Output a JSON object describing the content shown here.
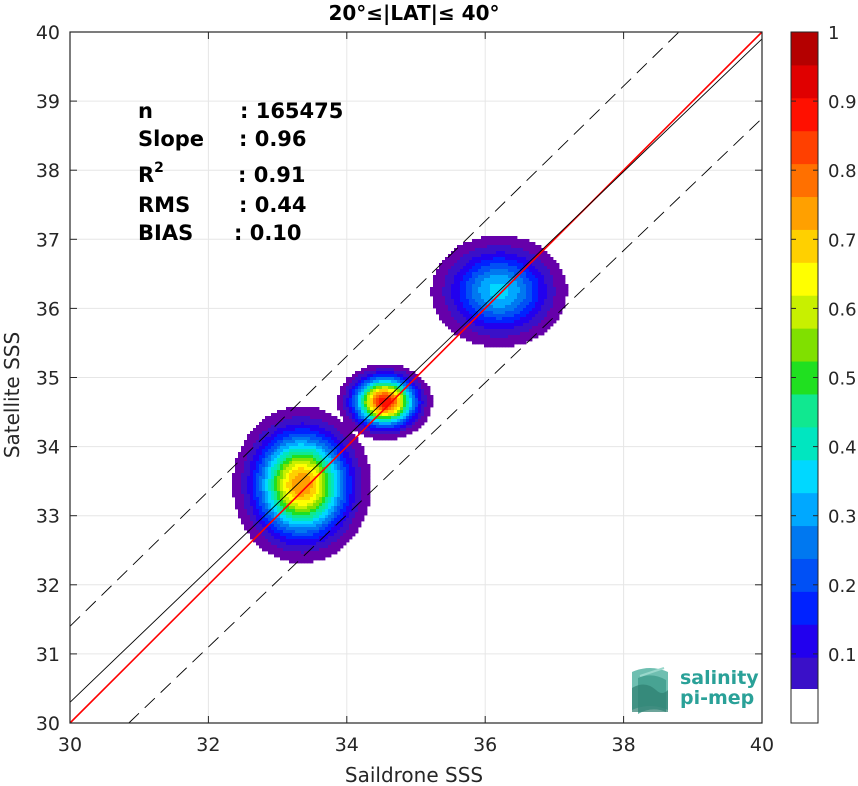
{
  "chart_data": {
    "type": "contour",
    "title": "20°≤|LAT|≤ 40°",
    "xlabel": "Saildrone SSS",
    "ylabel": "Satellite SSS",
    "xlim": [
      30,
      40
    ],
    "ylim": [
      30,
      40
    ],
    "xticks": [
      30,
      32,
      34,
      36,
      38,
      40
    ],
    "yticks": [
      30,
      31,
      32,
      33,
      34,
      35,
      36,
      37,
      38,
      39,
      40
    ],
    "grid": true,
    "stats": [
      {
        "label": "n",
        "value": ": 165475"
      },
      {
        "label": "Slope",
        "value": ": 0.96"
      },
      {
        "label": "R",
        "sup": "2",
        "value": ": 0.91"
      },
      {
        "label": "RMS",
        "value": ": 0.44"
      },
      {
        "label": "BIAS",
        "value": ": 0.10"
      }
    ],
    "lines": [
      {
        "name": "identity",
        "color": "#ff0000",
        "points": [
          [
            30,
            30
          ],
          [
            40,
            40
          ]
        ]
      },
      {
        "name": "regression",
        "color": "#000000",
        "points": [
          [
            30,
            30.3
          ],
          [
            40,
            39.9
          ]
        ]
      },
      {
        "name": "upper-bound",
        "color": "#000000",
        "dashed": true,
        "points": [
          [
            30,
            31.4
          ],
          [
            38.8,
            40
          ]
        ]
      },
      {
        "name": "lower-bound",
        "color": "#000000",
        "dashed": true,
        "points": [
          [
            30.85,
            30
          ],
          [
            40,
            38.75
          ]
        ]
      }
    ],
    "density_clusters": [
      {
        "center": [
          33.35,
          33.45
        ],
        "spread": [
          0.75,
          0.85
        ],
        "peak": 0.85
      },
      {
        "center": [
          34.55,
          34.65
        ],
        "spread": [
          0.5,
          0.4
        ],
        "peak": 1.0
      },
      {
        "center": [
          36.2,
          36.25
        ],
        "spread": [
          0.85,
          0.7
        ],
        "peak": 0.42
      }
    ],
    "colorbar": {
      "range": [
        0,
        1
      ],
      "ticks": [
        0.1,
        0.2,
        0.3,
        0.4,
        0.5,
        0.6,
        0.7,
        0.8,
        0.9,
        1
      ],
      "tick_labels": [
        "0.1",
        "0.2",
        "0.3",
        "0.4",
        "0.5",
        "0.6",
        "0.7",
        "0.8",
        "0.9",
        "1"
      ],
      "levels": 20,
      "colors": [
        "#ffffff",
        "#6600aa",
        "#3a10c8",
        "#2200ee",
        "#0022ff",
        "#0050f5",
        "#0078f0",
        "#00a8ff",
        "#00d8ff",
        "#00e6c0",
        "#10e890",
        "#20e020",
        "#80e000",
        "#c8f000",
        "#ffff00",
        "#ffd000",
        "#ffa000",
        "#ff7000",
        "#ff4000",
        "#ff1000",
        "#e00000",
        "#b40000",
        "#800000"
      ]
    }
  },
  "logo": {
    "line1": "salinity",
    "line2": "pi-mep"
  }
}
